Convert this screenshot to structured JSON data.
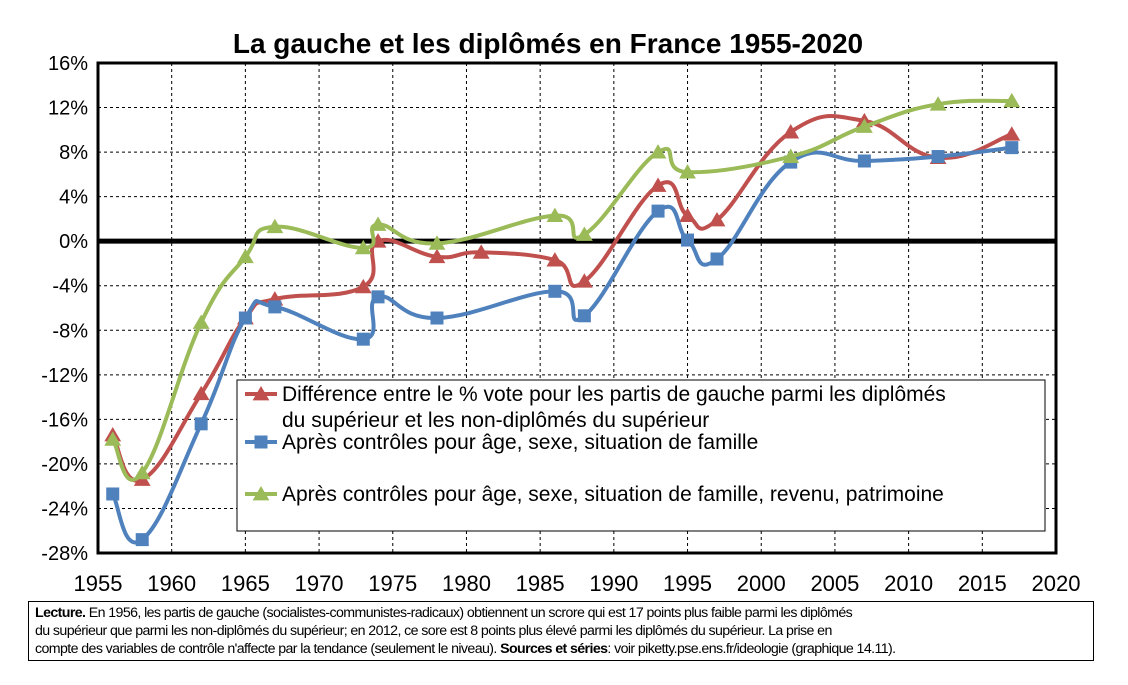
{
  "chart_data": {
    "type": "line",
    "title": "La gauche et les diplômés en France 1955-2020",
    "xlim": [
      1955,
      2020
    ],
    "ylim": [
      -28,
      16
    ],
    "x_ticks": [
      1955,
      1960,
      1965,
      1970,
      1975,
      1980,
      1985,
      1990,
      1995,
      2000,
      2005,
      2010,
      2015,
      2020
    ],
    "y_ticks": [
      16,
      12,
      8,
      4,
      0,
      -4,
      -8,
      -12,
      -16,
      -20,
      -24,
      -28
    ],
    "y_tick_labels": [
      "16%",
      "12%",
      "8%",
      "4%",
      "0%",
      "-4%",
      "-8%",
      "-12%",
      "-16%",
      "-20%",
      "-24%",
      "-28%"
    ],
    "grid": true,
    "legend_position": "bottom-right",
    "series": [
      {
        "name": "Différence entre le % vote pour les partis de gauche parmi les diplômés du supérieur et les non-diplômés du supérieur",
        "legend_lines": [
          "Différence entre le % vote pour les partis de gauche parmi les diplômés",
          "du supérieur et les non-diplômés du supérieur"
        ],
        "color": "#c0504d",
        "marker": "triangle",
        "x": [
          1956,
          1958,
          1962,
          1965,
          1967,
          1973,
          1974,
          1978,
          1981,
          1986,
          1988,
          1993,
          1995,
          1997,
          2002,
          2007,
          2012,
          2017
        ],
        "y": [
          -17.4,
          -21.4,
          -13.7,
          -6.9,
          -5.2,
          -4.1,
          0.0,
          -1.4,
          -1.0,
          -1.7,
          -3.6,
          5.0,
          2.3,
          1.9,
          9.8,
          10.8,
          7.5,
          9.6
        ]
      },
      {
        "name": "Après contrôles pour âge, sexe, situation de famille",
        "legend_lines": [
          "Après contrôles pour âge, sexe, situation de famille"
        ],
        "color": "#4f81bd",
        "marker": "square",
        "x": [
          1956,
          1958,
          1962,
          1965,
          1967,
          1973,
          1974,
          1978,
          1986,
          1988,
          1993,
          1995,
          1997,
          2002,
          2007,
          2012,
          2017
        ],
        "y": [
          -22.7,
          -26.8,
          -16.4,
          -6.9,
          -5.9,
          -8.8,
          -5.0,
          -6.9,
          -4.5,
          -6.7,
          2.7,
          0.1,
          -1.6,
          7.1,
          7.2,
          7.6,
          8.4
        ]
      },
      {
        "name": "Après contrôles pour âge, sexe, situation de famille, revenu, patrimoine",
        "legend_lines": [
          "Après contrôles pour âge, sexe, situation de famille, revenu, patrimoine"
        ],
        "color": "#9bbb59",
        "marker": "triangle",
        "x": [
          1956,
          1958,
          1962,
          1965,
          1967,
          1973,
          1974,
          1978,
          1986,
          1988,
          1993,
          1995,
          2002,
          2007,
          2012,
          2017
        ],
        "y": [
          -17.8,
          -20.8,
          -7.3,
          -1.4,
          1.3,
          -0.6,
          1.5,
          -0.2,
          2.3,
          0.6,
          8.0,
          6.2,
          7.6,
          10.3,
          12.3,
          12.6
        ]
      }
    ]
  },
  "note": {
    "lecture_label": "Lecture.",
    "line1_text": " En 1956, les partis de gauche (socialistes-communistes-radicaux) obtiennent un scrore qui est 17 points plus faible parmi les diplômés",
    "line2_text": "du supérieur que parmi les non-diplômés du supérieur; en 2012, ce sore est 8 points plus élevé parmi les diplômés du supérieur. La prise en",
    "line3_text": "compte des variables de contrôle n'affecte par la tendance (seulement le niveau). ",
    "sources_label": "Sources et séries",
    "sources_text": ": voir piketty.pse.ens.fr/ideologie (graphique 14.11)."
  }
}
